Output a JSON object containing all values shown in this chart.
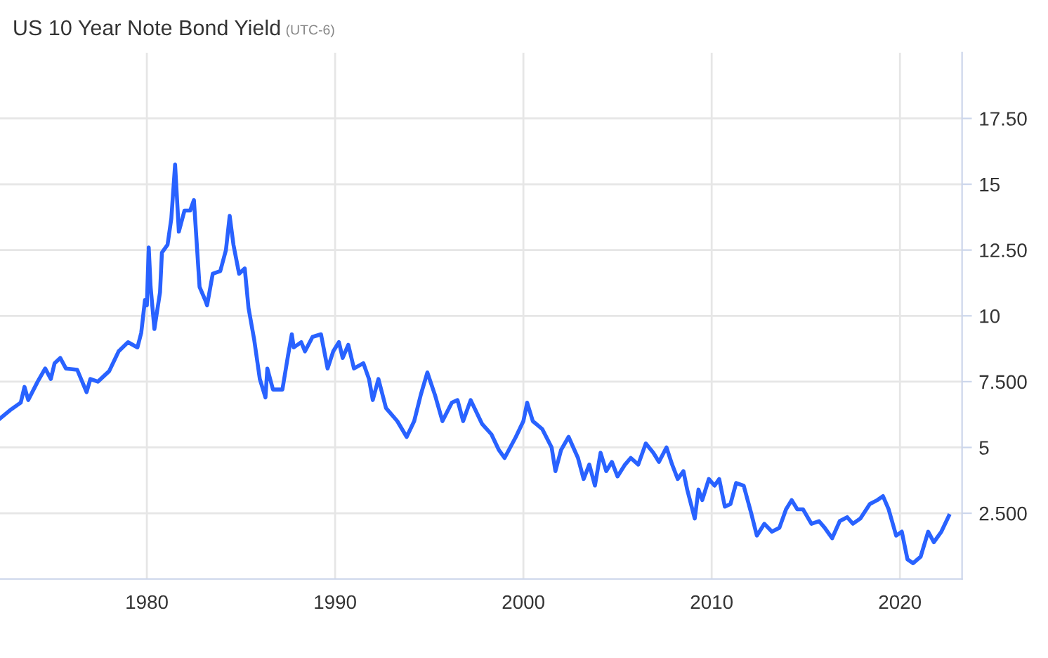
{
  "chart_data": {
    "type": "line",
    "title": "US 10 Year Note Bond Yield",
    "subtitle": "(UTC-6)",
    "series": [
      {
        "color": "#2962ff",
        "x": [
          1972.2,
          1972.8,
          1973.3,
          1973.5,
          1973.7,
          1974.2,
          1974.6,
          1974.9,
          1975.1,
          1975.4,
          1975.7,
          1976.3,
          1976.8,
          1977.0,
          1977.4,
          1978.0,
          1978.5,
          1979.0,
          1979.5,
          1979.7,
          1979.9,
          1980.0,
          1980.1,
          1980.2,
          1980.4,
          1980.7,
          1980.8,
          1981.1,
          1981.3,
          1981.5,
          1981.7,
          1982.0,
          1982.3,
          1982.5,
          1982.8,
          1983.1,
          1983.2,
          1983.5,
          1983.9,
          1984.2,
          1984.4,
          1984.6,
          1984.9,
          1985.2,
          1985.4,
          1985.7,
          1986.0,
          1986.3,
          1986.4,
          1986.7,
          1987.2,
          1987.5,
          1987.7,
          1987.8,
          1988.2,
          1988.4,
          1988.8,
          1989.25,
          1989.6,
          1989.9,
          1990.2,
          1990.4,
          1990.7,
          1991.0,
          1991.5,
          1991.8,
          1992.0,
          1992.3,
          1992.7,
          1993.3,
          1993.8,
          1994.2,
          1994.55,
          1994.9,
          1995.3,
          1995.7,
          1996.2,
          1996.5,
          1996.8,
          1997.2,
          1997.8,
          1998.3,
          1998.7,
          1999.0,
          1999.6,
          2000.0,
          2000.2,
          2000.5,
          2001.0,
          2001.5,
          2001.7,
          2002.0,
          2002.4,
          2002.9,
          2003.2,
          2003.5,
          2003.8,
          2004.1,
          2004.4,
          2004.7,
          2005.0,
          2005.4,
          2005.7,
          2006.1,
          2006.5,
          2006.9,
          2007.2,
          2007.6,
          2007.9,
          2008.2,
          2008.5,
          2008.7,
          2009.1,
          2009.3,
          2009.5,
          2009.85,
          2010.15,
          2010.4,
          2010.7,
          2011.0,
          2011.3,
          2011.7,
          2012.1,
          2012.4,
          2012.8,
          2013.2,
          2013.6,
          2013.95,
          2014.25,
          2014.55,
          2014.85,
          2015.3,
          2015.7,
          2016.0,
          2016.4,
          2016.8,
          2017.2,
          2017.5,
          2017.9,
          2018.4,
          2018.8,
          2019.1,
          2019.4,
          2019.8,
          2020.1,
          2020.4,
          2020.7,
          2021.1,
          2021.5,
          2021.8,
          2022.2,
          2022.6
        ],
        "values": [
          6.1,
          6.45,
          6.7,
          7.3,
          6.8,
          7.5,
          8.0,
          7.6,
          8.2,
          8.4,
          8.0,
          7.95,
          7.1,
          7.6,
          7.5,
          7.9,
          8.65,
          9.0,
          8.8,
          9.35,
          10.6,
          10.4,
          12.6,
          11.1,
          9.5,
          10.9,
          12.4,
          12.7,
          13.7,
          15.75,
          13.2,
          14.0,
          14.0,
          14.4,
          11.1,
          10.6,
          10.4,
          11.6,
          11.7,
          12.5,
          13.8,
          12.7,
          11.6,
          11.8,
          10.3,
          9.1,
          7.6,
          6.9,
          8.0,
          7.2,
          7.2,
          8.5,
          9.3,
          8.8,
          9.0,
          8.65,
          9.2,
          9.3,
          8.0,
          8.65,
          9.0,
          8.4,
          8.9,
          8.0,
          8.2,
          7.6,
          6.8,
          7.6,
          6.5,
          6.0,
          5.4,
          6.0,
          7.0,
          7.85,
          7.0,
          6.0,
          6.7,
          6.8,
          6.0,
          6.8,
          5.9,
          5.5,
          4.9,
          4.6,
          5.4,
          6.0,
          6.7,
          6.0,
          5.7,
          5.0,
          4.1,
          4.9,
          5.4,
          4.6,
          3.8,
          4.35,
          3.55,
          4.8,
          4.1,
          4.45,
          3.9,
          4.35,
          4.6,
          4.35,
          5.15,
          4.8,
          4.45,
          5.0,
          4.35,
          3.8,
          4.1,
          3.4,
          2.3,
          3.4,
          3.0,
          3.8,
          3.55,
          3.8,
          2.75,
          2.85,
          3.65,
          3.55,
          2.5,
          1.65,
          2.1,
          1.8,
          1.95,
          2.65,
          3.0,
          2.65,
          2.65,
          2.1,
          2.2,
          1.95,
          1.55,
          2.2,
          2.35,
          2.1,
          2.3,
          2.85,
          3.0,
          3.15,
          2.65,
          1.65,
          1.8,
          0.75,
          0.6,
          0.85,
          1.8,
          1.4,
          1.8,
          2.4
        ]
      }
    ],
    "xlim": [
      1972.2,
      2023.3
    ],
    "xticks": [
      1980,
      1990,
      2000,
      2010,
      2020
    ],
    "ylim": [
      0,
      20
    ],
    "yticks": [
      {
        "value": 2.5,
        "label": "2.500"
      },
      5,
      {
        "value": 7.5,
        "label": "7.500"
      },
      10,
      {
        "value": 12.5,
        "label": "12.50"
      },
      15,
      {
        "value": 17.5,
        "label": "17.50"
      }
    ],
    "grid": true
  }
}
